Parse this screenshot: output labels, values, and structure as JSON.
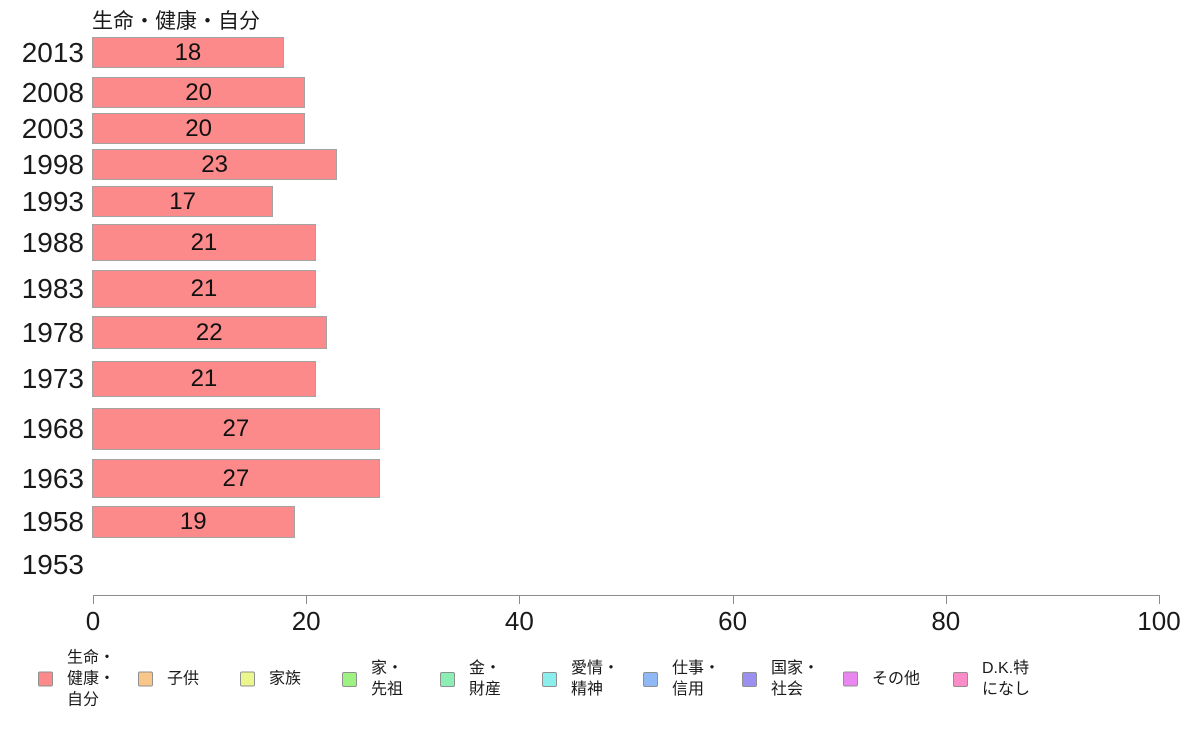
{
  "chart_data": {
    "type": "bar",
    "orientation": "horizontal",
    "title": "生命・健康・自分",
    "categories": [
      "2013",
      "2008",
      "2003",
      "1998",
      "1993",
      "1988",
      "1983",
      "1978",
      "1973",
      "1968",
      "1963",
      "1958",
      "1953"
    ],
    "values": [
      18,
      20,
      20,
      23,
      17,
      21,
      21,
      22,
      21,
      27,
      27,
      19,
      null
    ],
    "xlabel": "",
    "ylabel": "",
    "xlim": [
      0,
      100
    ],
    "x_ticks": [
      0,
      20,
      40,
      60,
      80,
      100
    ],
    "grid": "off",
    "bar_color": "#fc8a8a",
    "bar_border_color": "#a3a3a3",
    "legend_position": "bottom",
    "legend": [
      {
        "label": "生命・\n健康・\n自分",
        "color": "#fc8a8a"
      },
      {
        "label": "子供",
        "color": "#f9c689"
      },
      {
        "label": "家族",
        "color": "#ebf68d"
      },
      {
        "label": "家・\n先祖",
        "color": "#9df282"
      },
      {
        "label": "金・\n財産",
        "color": "#8befb5"
      },
      {
        "label": "愛情・\n精神",
        "color": "#8ceded"
      },
      {
        "label": "仕事・\n信用",
        "color": "#8fb8f4"
      },
      {
        "label": "国家・\n社会",
        "color": "#9b90f0"
      },
      {
        "label": "その他",
        "color": "#e986f0"
      },
      {
        "label": "D.K.特\nになし",
        "color": "#fa8cc8"
      }
    ]
  }
}
